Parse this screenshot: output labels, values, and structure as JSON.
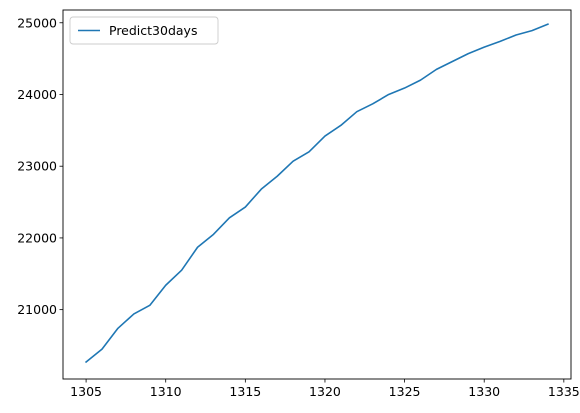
{
  "chart_data": {
    "type": "line",
    "title": "",
    "xlabel": "",
    "ylabel": "",
    "xlim": [
      1303.55,
      1335.45
    ],
    "ylim": [
      20033,
      25178
    ],
    "xticks": [
      1305,
      1310,
      1315,
      1320,
      1325,
      1330,
      1335
    ],
    "yticks": [
      21000,
      22000,
      23000,
      24000,
      25000
    ],
    "grid": false,
    "legend_position": "top-left",
    "series": [
      {
        "name": "Predict30days",
        "color": "#1f77b4",
        "x": [
          1305,
          1306,
          1307,
          1308,
          1309,
          1310,
          1311,
          1312,
          1313,
          1314,
          1315,
          1316,
          1317,
          1318,
          1319,
          1320,
          1321,
          1322,
          1323,
          1324,
          1325,
          1326,
          1327,
          1328,
          1329,
          1330,
          1331,
          1332,
          1333,
          1334
        ],
        "y": [
          20270,
          20450,
          20740,
          20940,
          21060,
          21340,
          21550,
          21870,
          22050,
          22280,
          22430,
          22680,
          22860,
          23070,
          23200,
          23420,
          23570,
          23760,
          23870,
          24000,
          24090,
          24200,
          24350,
          24460,
          24570,
          24660,
          24740,
          24830,
          24890,
          24980
        ]
      }
    ]
  }
}
